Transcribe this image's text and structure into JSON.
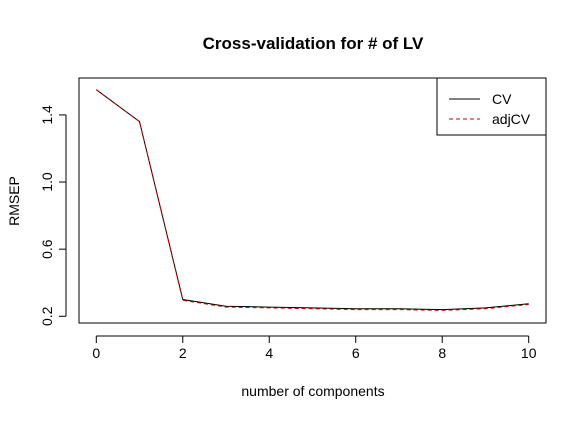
{
  "chart_data": {
    "type": "line",
    "title": "Cross-validation for # of LV",
    "xlabel": "number of components",
    "ylabel": "RMSEP",
    "x": [
      0,
      1,
      2,
      3,
      4,
      5,
      6,
      7,
      8,
      9,
      10
    ],
    "xticks": [
      0,
      2,
      4,
      6,
      8,
      10
    ],
    "yticks": [
      0.2,
      0.6,
      1.0,
      1.4
    ],
    "ytick_labels": [
      "0.2",
      "0.6",
      "1.0",
      "1.4"
    ],
    "xlim": [
      -0.4,
      10.4
    ],
    "ylim": [
      0.16,
      1.62
    ],
    "grid": false,
    "legend_position": "top-right",
    "series": [
      {
        "name": "CV",
        "color": "#000000",
        "dash": "solid",
        "values": [
          1.55,
          1.36,
          0.3,
          0.26,
          0.255,
          0.25,
          0.245,
          0.245,
          0.24,
          0.25,
          0.275
        ]
      },
      {
        "name": "adjCV",
        "color": "#cc0000",
        "dash": "dashed",
        "values": [
          1.55,
          1.36,
          0.295,
          0.255,
          0.25,
          0.245,
          0.24,
          0.24,
          0.235,
          0.245,
          0.27
        ]
      }
    ]
  }
}
